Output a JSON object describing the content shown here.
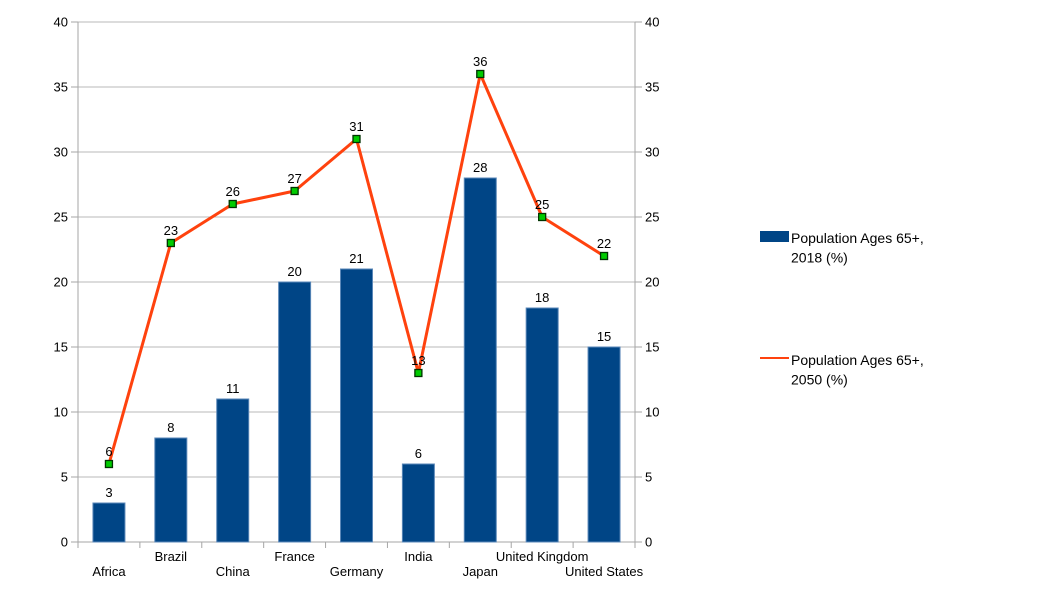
{
  "chart_data": {
    "type": "combo",
    "title": "",
    "categories": [
      "Africa",
      "Brazil",
      "China",
      "France",
      "Germany",
      "India",
      "Japan",
      "United Kingdom",
      "United States"
    ],
    "series": [
      {
        "name": "Population Ages 65+, 2018 (%)",
        "chart_type": "bar",
        "values": [
          3,
          8,
          11,
          20,
          21,
          6,
          28,
          18,
          15
        ],
        "color": "#004586",
        "border_color": "#5a87b8"
      },
      {
        "name": "Population Ages 65+, 2050 (%)",
        "chart_type": "line",
        "values": [
          6,
          23,
          26,
          27,
          31,
          13,
          36,
          25,
          22
        ],
        "color": "#ff420e",
        "marker": {
          "shape": "square",
          "fill": "#00cc00",
          "stroke": "#003300"
        }
      }
    ],
    "y_axis": {
      "min": 0,
      "max": 40,
      "tick_step": 5,
      "ticks": [
        0,
        5,
        10,
        15,
        20,
        25,
        30,
        35,
        40
      ],
      "sides": [
        "left",
        "right"
      ]
    },
    "x_axis": {
      "label_rows": "staggered"
    },
    "grid": {
      "horizontal": true,
      "color": "#b9b9b9"
    },
    "axis_color": "#a6a6a6",
    "text_color": "#000000",
    "background": "#ffffff",
    "data_labels": true,
    "legend": {
      "position": "right",
      "items": [
        {
          "swatch": "bar",
          "color": "#004586",
          "lines": [
            "Population Ages 65+,",
            "2018 (%)"
          ]
        },
        {
          "swatch": "line",
          "color": "#ff420e",
          "lines": [
            "Population Ages 65+,",
            "2050 (%)"
          ]
        }
      ]
    }
  }
}
